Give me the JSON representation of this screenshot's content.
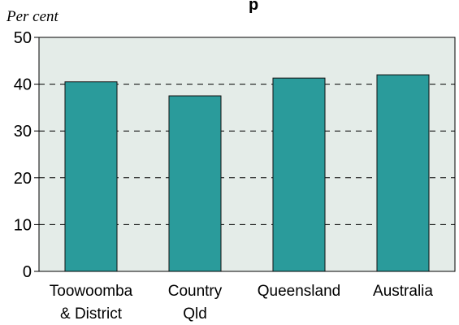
{
  "chart_data": {
    "type": "bar",
    "title": "",
    "title_partial": "p",
    "ylabel": "Per cent",
    "xlabel": "",
    "categories": [
      [
        "Toowoomba",
        "& District"
      ],
      [
        "Country",
        "Qld"
      ],
      [
        "Queensland"
      ],
      [
        "Australia"
      ]
    ],
    "values": [
      40.5,
      37.5,
      41.3,
      42.0
    ],
    "ylim": [
      0,
      50
    ],
    "yticks": [
      "0",
      "10",
      "20",
      "30",
      "40",
      "50"
    ],
    "grid": "horizontal-dashed",
    "colors": {
      "bar": "#2a9b9b",
      "plot_background": "#e4ece8",
      "grid": "#000000",
      "axis": "#000000"
    }
  }
}
